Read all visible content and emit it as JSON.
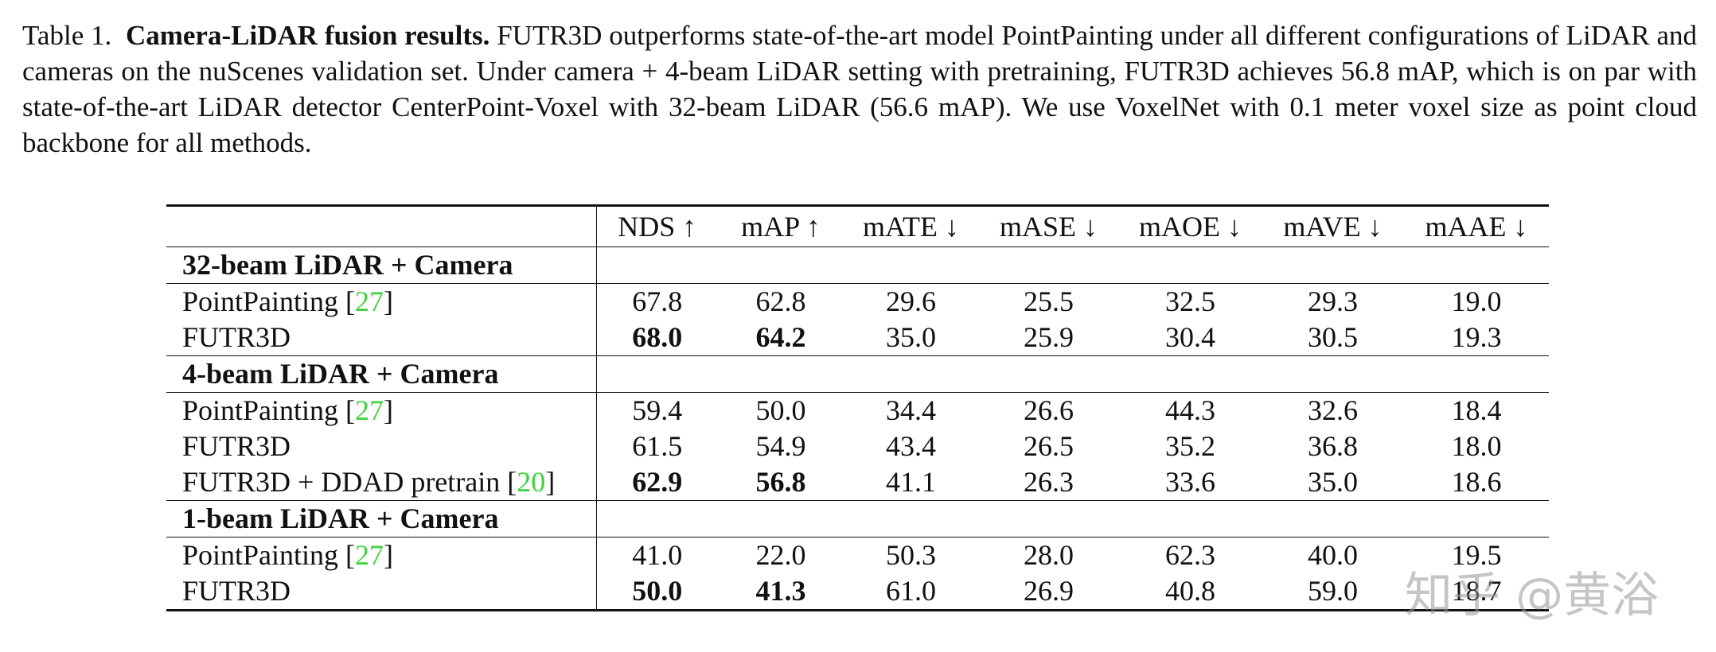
{
  "caption": {
    "label": "Table 1.",
    "title": "Camera-LiDAR fusion results.",
    "text": "FUTR3D outperforms state-of-the-art model PointPainting under all different configurations of LiDAR and cameras on the nuScenes validation set. Under camera + 4-beam LiDAR setting with pretraining, FUTR3D achieves 56.8 mAP, which is on par with state-of-the-art LiDAR detector CenterPoint-Voxel with 32-beam LiDAR (56.6 mAP). We use VoxelNet with 0.1 meter voxel size as point cloud backbone for all methods."
  },
  "table": {
    "metrics": [
      "NDS ↑",
      "mAP ↑",
      "mATE ↓",
      "mASE ↓",
      "mAOE ↓",
      "mAVE ↓",
      "mAAE ↓"
    ],
    "groups": [
      {
        "title": "32-beam LiDAR + Camera",
        "rows": [
          {
            "method": "PointPainting",
            "cite": {
              "open": "[",
              "ref": "27",
              "close": "]"
            },
            "values": [
              "67.8",
              "62.8",
              "29.6",
              "25.5",
              "32.5",
              "29.3",
              "19.0"
            ]
          },
          {
            "method": "FUTR3D",
            "values": [
              "68.0",
              "64.2",
              "35.0",
              "25.9",
              "30.4",
              "30.5",
              "19.3"
            ],
            "bold": [
              true,
              true,
              false,
              false,
              false,
              false,
              false
            ]
          }
        ]
      },
      {
        "title": "4-beam LiDAR + Camera",
        "rows": [
          {
            "method": "PointPainting",
            "cite": {
              "open": "[",
              "ref": "27",
              "close": "]"
            },
            "values": [
              "59.4",
              "50.0",
              "34.4",
              "26.6",
              "44.3",
              "32.6",
              "18.4"
            ]
          },
          {
            "method": "FUTR3D",
            "values": [
              "61.5",
              "54.9",
              "43.4",
              "26.5",
              "35.2",
              "36.8",
              "18.0"
            ]
          },
          {
            "method": "FUTR3D + DDAD pretrain",
            "cite": {
              "open": "[",
              "ref": "20",
              "close": "]"
            },
            "values": [
              "62.9",
              "56.8",
              "41.1",
              "26.3",
              "33.6",
              "35.0",
              "18.6"
            ],
            "bold": [
              true,
              true,
              false,
              false,
              false,
              false,
              false
            ]
          }
        ]
      },
      {
        "title": "1-beam LiDAR + Camera",
        "rows": [
          {
            "method": "PointPainting",
            "cite": {
              "open": "[",
              "ref": "27",
              "close": "]"
            },
            "values": [
              "41.0",
              "22.0",
              "50.3",
              "28.0",
              "62.3",
              "40.0",
              "19.5"
            ]
          },
          {
            "method": "FUTR3D",
            "values": [
              "50.0",
              "41.3",
              "61.0",
              "26.9",
              "40.8",
              "59.0",
              "18.7"
            ],
            "bold": [
              true,
              true,
              false,
              false,
              false,
              false,
              false
            ]
          }
        ]
      }
    ]
  },
  "watermark": "知乎 @黄浴"
}
